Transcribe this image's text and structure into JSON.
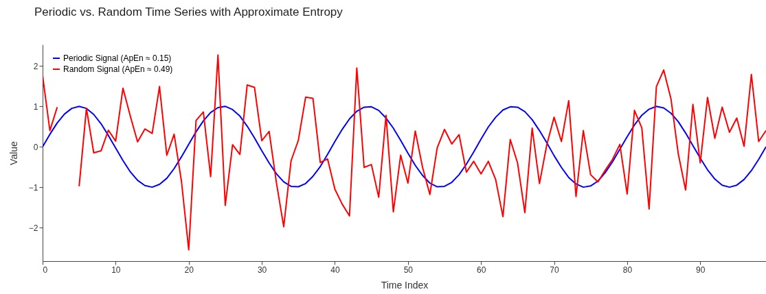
{
  "chart_data": {
    "type": "line",
    "title": "Periodic vs. Random Time Series with Approximate Entropy",
    "xlabel": "Time Index",
    "ylabel": "Value",
    "x": [
      0,
      1,
      2,
      3,
      4,
      5,
      6,
      7,
      8,
      9,
      10,
      11,
      12,
      13,
      14,
      15,
      16,
      17,
      18,
      19,
      20,
      21,
      22,
      23,
      24,
      25,
      26,
      27,
      28,
      29,
      30,
      31,
      32,
      33,
      34,
      35,
      36,
      37,
      38,
      39,
      40,
      41,
      42,
      43,
      44,
      45,
      46,
      47,
      48,
      49,
      50,
      51,
      52,
      53,
      54,
      55,
      56,
      57,
      58,
      59,
      60,
      61,
      62,
      63,
      64,
      65,
      66,
      67,
      68,
      69,
      70,
      71,
      72,
      73,
      74,
      75,
      76,
      77,
      78,
      79,
      80,
      81,
      82,
      83,
      84,
      85,
      86,
      87,
      88,
      89,
      90,
      91,
      92,
      93,
      94,
      95,
      96,
      97,
      98,
      99
    ],
    "series": [
      {
        "name": "Periodic Signal (ApEn ≈ 0.15)",
        "color": "#0000ff",
        "values": [
          0,
          0.31,
          0.59,
          0.81,
          0.95,
          1.0,
          0.95,
          0.8,
          0.57,
          0.28,
          -0.03,
          -0.34,
          -0.62,
          -0.83,
          -0.96,
          -1.0,
          -0.93,
          -0.78,
          -0.54,
          -0.25,
          0.06,
          0.37,
          0.64,
          0.85,
          0.97,
          1.0,
          0.92,
          0.76,
          0.51,
          0.22,
          -0.1,
          -0.4,
          -0.67,
          -0.87,
          -0.98,
          -0.99,
          -0.91,
          -0.73,
          -0.49,
          -0.19,
          0.13,
          0.43,
          0.69,
          0.88,
          0.98,
          0.99,
          0.9,
          0.71,
          0.46,
          0.16,
          -0.16,
          -0.46,
          -0.71,
          -0.9,
          -0.99,
          -0.98,
          -0.88,
          -0.69,
          -0.43,
          -0.13,
          0.19,
          0.49,
          0.73,
          0.91,
          0.99,
          0.98,
          0.87,
          0.67,
          0.4,
          0.1,
          -0.22,
          -0.51,
          -0.76,
          -0.92,
          -1.0,
          -0.97,
          -0.85,
          -0.64,
          -0.37,
          -0.06,
          0.25,
          0.54,
          0.78,
          0.93,
          1.0,
          0.96,
          0.83,
          0.62,
          0.34,
          0.03,
          -0.28,
          -0.57,
          -0.8,
          -0.95,
          -1.0,
          -0.95,
          -0.81,
          -0.59,
          -0.31,
          0
        ]
      },
      {
        "name": "Random Signal (ApEn ≈ 0.49)",
        "color": "#ff0000",
        "values": [
          1.76,
          0.4,
          0.98,
          null,
          null,
          -0.98,
          0.95,
          -0.15,
          -0.1,
          0.41,
          0.14,
          1.45,
          0.76,
          0.12,
          0.44,
          0.33,
          1.49,
          -0.21,
          0.31,
          -0.85,
          -2.55,
          0.65,
          0.86,
          -0.74,
          2.27,
          -1.45,
          0.05,
          -0.19,
          1.53,
          1.47,
          0.15,
          0.38,
          -0.89,
          -1.98,
          -0.35,
          0.16,
          1.23,
          1.2,
          -0.39,
          -0.3,
          -1.05,
          -1.42,
          -1.71,
          1.95,
          -0.51,
          -0.44,
          -1.25,
          0.78,
          -1.61,
          -0.21,
          -0.9,
          0.39,
          -0.51,
          -1.18,
          -0.03,
          0.43,
          0.07,
          0.3,
          -0.63,
          -0.36,
          -0.67,
          -0.36,
          -0.81,
          -1.73,
          0.18,
          -0.4,
          -1.63,
          0.46,
          -0.91,
          0.05,
          0.73,
          0.13,
          1.14,
          -1.23,
          0.4,
          -0.69,
          -0.87,
          -0.58,
          -0.31,
          0.06,
          -1.17,
          0.9,
          0.47,
          -1.54,
          1.49,
          1.9,
          1.18,
          -0.18,
          -1.07,
          1.05,
          -0.4,
          1.22,
          0.21,
          0.98,
          0.36,
          0.71,
          0.01,
          1.79,
          0.13,
          0.4
        ]
      }
    ],
    "xlim": [
      0,
      99
    ],
    "ylim": [
      -2.83,
      2.53
    ],
    "xticks": [
      0,
      10,
      20,
      30,
      40,
      50,
      60,
      70,
      80,
      90
    ],
    "yticks": [
      -2,
      -1,
      0,
      1,
      2
    ],
    "grid": false,
    "legend": "top left",
    "marker": "none",
    "line_style": "solid"
  }
}
